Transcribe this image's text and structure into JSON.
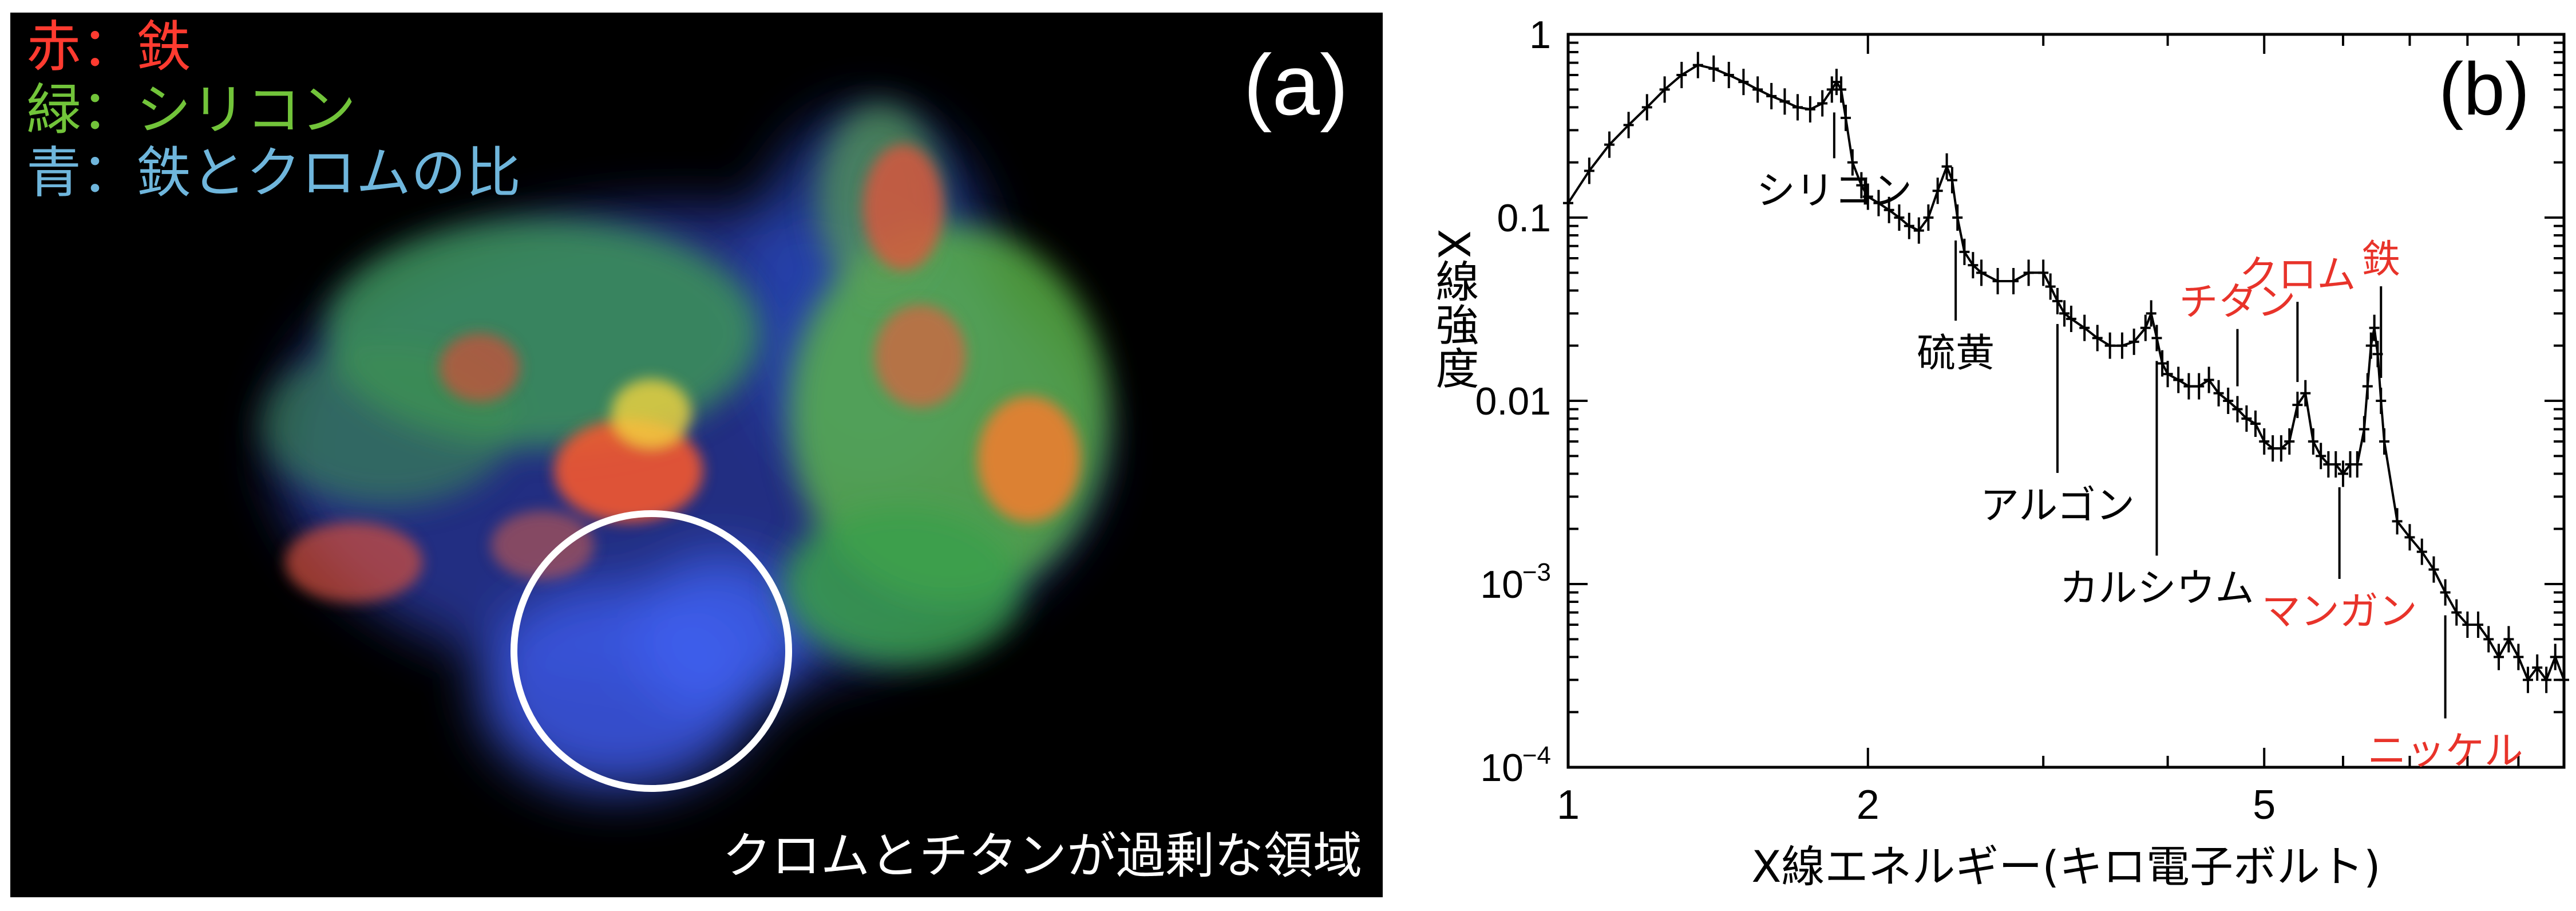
{
  "panel_a": {
    "tag": "(a)",
    "legend": [
      {
        "color_word": "赤",
        "sep": "：",
        "element": "鉄",
        "color": "#ff3b30"
      },
      {
        "color_word": "緑",
        "sep": "：",
        "element": "シリコン",
        "color": "#72c43a"
      },
      {
        "color_word": "青",
        "sep": "：",
        "element": "鉄とクロムの比",
        "color": "#6fb6dc"
      }
    ],
    "region_caption": "クロムとチタンが過剰な領域",
    "colors": {
      "background": "#000000",
      "red": "#ff3b30",
      "green": "#72c43a",
      "blue": "#3a55e0",
      "circle": "#ffffff"
    }
  },
  "chart_data": {
    "type": "line",
    "title": "",
    "panel_tag": "(b)",
    "xlabel": "X線エネルギー(キロ電子ボルト)",
    "ylabel": "X線強度",
    "x_scale": "log",
    "y_scale": "log",
    "xlim": [
      1,
      10
    ],
    "ylim": [
      0.0001,
      1
    ],
    "x_ticks": [
      {
        "value": 1,
        "label": "1"
      },
      {
        "value": 2,
        "label": "2"
      },
      {
        "value": 5,
        "label": "5"
      }
    ],
    "y_ticks": [
      {
        "value": 1,
        "label": "1"
      },
      {
        "value": 0.1,
        "label": "0.1"
      },
      {
        "value": 0.01,
        "label": "0.01"
      },
      {
        "value": 0.001,
        "label": "10",
        "exp": "−3"
      },
      {
        "value": 0.0001,
        "label": "10",
        "exp": "−4"
      }
    ],
    "grid": false,
    "series": [
      {
        "color": "#000000",
        "x": [
          1.0,
          1.05,
          1.1,
          1.15,
          1.2,
          1.25,
          1.3,
          1.35,
          1.4,
          1.45,
          1.5,
          1.55,
          1.6,
          1.65,
          1.7,
          1.75,
          1.8,
          1.84,
          1.86,
          1.88,
          1.9,
          1.93,
          1.97,
          2.0,
          2.05,
          2.1,
          2.15,
          2.2,
          2.25,
          2.3,
          2.35,
          2.4,
          2.43,
          2.46,
          2.5,
          2.55,
          2.6,
          2.7,
          2.8,
          2.9,
          3.0,
          3.05,
          3.1,
          3.15,
          3.2,
          3.3,
          3.4,
          3.5,
          3.6,
          3.7,
          3.8,
          3.85,
          3.9,
          3.95,
          4.0,
          4.1,
          4.2,
          4.3,
          4.4,
          4.5,
          4.6,
          4.7,
          4.8,
          4.9,
          5.0,
          5.1,
          5.2,
          5.3,
          5.4,
          5.5,
          5.6,
          5.7,
          5.8,
          5.9,
          6.0,
          6.1,
          6.2,
          6.3,
          6.35,
          6.4,
          6.45,
          6.5,
          6.55,
          6.6,
          6.8,
          7.0,
          7.2,
          7.4,
          7.6,
          7.8,
          8.0,
          8.2,
          8.4,
          8.6,
          8.8,
          9.0,
          9.2,
          9.4,
          9.6,
          9.8,
          10.0
        ],
        "y": [
          0.12,
          0.18,
          0.25,
          0.32,
          0.4,
          0.5,
          0.6,
          0.68,
          0.65,
          0.6,
          0.55,
          0.5,
          0.46,
          0.43,
          0.4,
          0.39,
          0.42,
          0.5,
          0.55,
          0.5,
          0.35,
          0.2,
          0.15,
          0.13,
          0.12,
          0.11,
          0.1,
          0.09,
          0.085,
          0.1,
          0.14,
          0.19,
          0.16,
          0.1,
          0.065,
          0.055,
          0.05,
          0.045,
          0.045,
          0.05,
          0.05,
          0.042,
          0.035,
          0.03,
          0.028,
          0.025,
          0.022,
          0.02,
          0.02,
          0.021,
          0.025,
          0.03,
          0.022,
          0.016,
          0.014,
          0.013,
          0.012,
          0.012,
          0.013,
          0.011,
          0.01,
          0.009,
          0.008,
          0.0075,
          0.006,
          0.0055,
          0.0055,
          0.006,
          0.0095,
          0.011,
          0.006,
          0.005,
          0.0045,
          0.0045,
          0.004,
          0.0045,
          0.0045,
          0.007,
          0.012,
          0.02,
          0.025,
          0.018,
          0.01,
          0.006,
          0.0022,
          0.0018,
          0.0015,
          0.0012,
          0.0009,
          0.0007,
          0.0006,
          0.0006,
          0.0005,
          0.0004,
          0.0005,
          0.0004,
          0.0003,
          0.00035,
          0.0003,
          0.0004,
          0.0003
        ]
      }
    ],
    "line_labels": [
      {
        "text": "シリコン",
        "x": 1.85,
        "color": "#000000"
      },
      {
        "text": "硫黄",
        "x": 2.45,
        "color": "#000000"
      },
      {
        "text": "アルゴン",
        "x": 3.1,
        "color": "#000000"
      },
      {
        "text": "カルシウム",
        "x": 3.9,
        "color": "#000000"
      },
      {
        "text": "チタン",
        "x": 4.7,
        "color": "#e8332a"
      },
      {
        "text": "クロム",
        "x": 5.4,
        "color": "#e8332a"
      },
      {
        "text": "マンガン",
        "x": 5.95,
        "color": "#e8332a"
      },
      {
        "text": "鉄",
        "x": 6.55,
        "color": "#e8332a"
      },
      {
        "text": "ニッケル",
        "x": 7.6,
        "color": "#e8332a"
      }
    ]
  }
}
